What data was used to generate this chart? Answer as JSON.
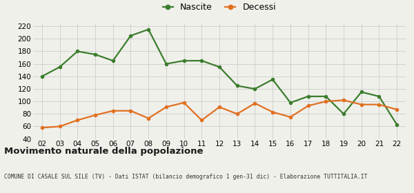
{
  "years": [
    "02",
    "03",
    "04",
    "05",
    "06",
    "07",
    "08",
    "09",
    "10",
    "11",
    "12",
    "13",
    "14",
    "15",
    "16",
    "17",
    "18",
    "19",
    "20",
    "21",
    "22"
  ],
  "nascite": [
    140,
    155,
    180,
    175,
    165,
    205,
    215,
    160,
    165,
    165,
    155,
    125,
    120,
    135,
    98,
    108,
    108,
    80,
    115,
    108,
    63
  ],
  "decessi": [
    58,
    60,
    70,
    78,
    85,
    85,
    73,
    91,
    98,
    70,
    91,
    80,
    97,
    83,
    75,
    93,
    100,
    102,
    95,
    95,
    87
  ],
  "nascite_color": "#3a7d2c",
  "decessi_color": "#e07020",
  "background_color": "#f0f0eb",
  "grid_color": "#cccccc",
  "title": "Movimento naturale della popolazione",
  "subtitle": "COMUNE DI CASALE SUL SILE (TV) - Dati ISTAT (bilancio demografico 1 gen-31 dic) - Elaborazione TUTTITALIA.IT",
  "legend_nascite": "Nascite",
  "legend_decessi": "Decessi",
  "ylim": [
    40,
    225
  ],
  "yticks": [
    40,
    60,
    80,
    100,
    120,
    140,
    160,
    180,
    200,
    220
  ],
  "marker_size": 4,
  "line_width": 1.6
}
